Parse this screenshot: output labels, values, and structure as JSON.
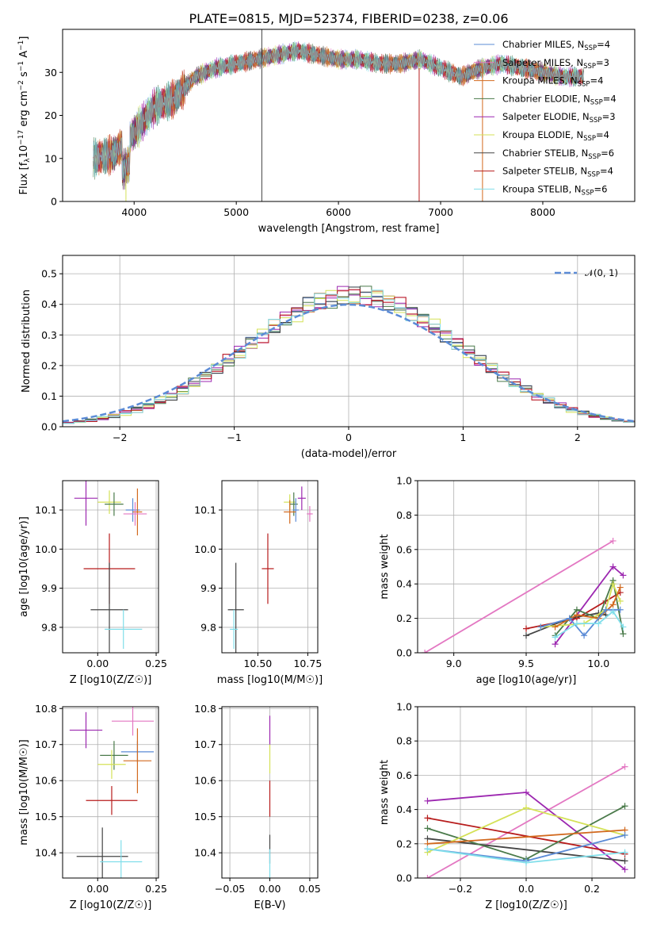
{
  "figure": {
    "title": "PLATE=0815, MJD=52374, FIBERID=0238, z=0.06"
  },
  "colors": {
    "chabrier_miles": "#1f77b4",
    "salpeter_miles": "#ff7f0e",
    "kroupa_miles": "#d2691e",
    "chabrier_elodie": "#2e7d32",
    "salpeter_elodie": "#9c27b0",
    "kroupa_elodie": "#d4e157",
    "chabrier_stelib": "#333333",
    "salpeter_stelib": "#b71c1c",
    "kroupa_stelib": "#80deea",
    "pink": "#e377c2",
    "blue_line": "#5b8bd6"
  },
  "chart_data": [
    {
      "id": "spectrum",
      "type": "line",
      "title": "PLATE=0815, MJD=52374, FIBERID=0238, z=0.06",
      "xlabel": "wavelength [Angstrom, rest frame]",
      "ylabel": "Flux [f_λ 10^-17 erg cm^-2 s^-1 A^-1]",
      "xlim": [
        3300,
        8900
      ],
      "ylim": [
        0,
        40
      ],
      "xticks": [
        4000,
        5000,
        6000,
        7000,
        8000
      ],
      "yticks": [
        0,
        10,
        20,
        30
      ],
      "grid": false,
      "legend_position": "top-right",
      "series": [
        {
          "name": "Chabrier MILES, N_SSP=4",
          "label_main": "Chabrier MILES, N",
          "label_sub": "SSP",
          "label_tail": "=4",
          "color": "#5b8bd6"
        },
        {
          "name": "Salpeter MILES, N_SSP=3",
          "label_main": "Salpeter MILES, N",
          "label_sub": "SSP",
          "label_tail": "=3",
          "color": "#e377c2"
        },
        {
          "name": "Kroupa MILES, N_SSP=4",
          "label_main": "Kroupa MILES, N",
          "label_sub": "SSP",
          "label_tail": "=4",
          "color": "#d2691e"
        },
        {
          "name": "Chabrier ELODIE, N_SSP=4",
          "label_main": "Chabrier ELODIE, N",
          "label_sub": "SSP",
          "label_tail": "=4",
          "color": "#4a7a4a"
        },
        {
          "name": "Salpeter ELODIE, N_SSP=3",
          "label_main": "Salpeter ELODIE, N",
          "label_sub": "SSP",
          "label_tail": "=3",
          "color": "#9c27b0"
        },
        {
          "name": "Kroupa ELODIE, N_SSP=4",
          "label_main": "Kroupa ELODIE, N",
          "label_sub": "SSP",
          "label_tail": "=4",
          "color": "#d4e157"
        },
        {
          "name": "Chabrier STELIB, N_SSP=6",
          "label_main": "Chabrier STELIB, N",
          "label_sub": "SSP",
          "label_tail": "=6",
          "color": "#444444"
        },
        {
          "name": "Salpeter STELIB, N_SSP=4",
          "label_main": "Salpeter STELIB, N",
          "label_sub": "SSP",
          "label_tail": "=4",
          "color": "#b71c1c"
        },
        {
          "name": "Kroupa STELIB, N_SSP=6",
          "label_main": "Kroupa STELIB, N",
          "label_sub": "SSP",
          "label_tail": "=6",
          "color": "#80deea"
        }
      ],
      "continuum": {
        "x": [
          3600,
          3800,
          4000,
          4200,
          4400,
          4600,
          4800,
          5000,
          5200,
          5400,
          5600,
          5800,
          6000,
          6200,
          6400,
          6600,
          6800,
          7000,
          7200,
          7400,
          7600,
          7800,
          8000,
          8200,
          8400
        ],
        "y": [
          10,
          11,
          16,
          22,
          24,
          29,
          31,
          32,
          33,
          34,
          35,
          34,
          33,
          33,
          32,
          32,
          33,
          31,
          29,
          31,
          32,
          31,
          30,
          29,
          29
        ]
      }
    },
    {
      "id": "residuals",
      "type": "line",
      "xlabel": "(data-model)/error",
      "ylabel": "Normed distribution",
      "xlim": [
        -2.5,
        2.5
      ],
      "ylim": [
        0,
        0.56
      ],
      "xticks": [
        -2,
        -1,
        0,
        1,
        2
      ],
      "yticks": [
        0.0,
        0.1,
        0.2,
        0.3,
        0.4,
        0.5
      ],
      "grid": true,
      "legend_position": "top-right",
      "legend_label": "𝒩(0, 1)",
      "reference_curve": {
        "name": "N(0,1)",
        "mean": 0,
        "sigma": 1
      }
    },
    {
      "id": "age_vs_Z",
      "type": "scatter",
      "xlabel": "Z [log10(Z/Z☉)]",
      "ylabel": "age  [log10(age/yr)]",
      "xlim": [
        -0.15,
        0.26
      ],
      "ylim": [
        9.735,
        10.175
      ],
      "xticks": [
        0.0,
        0.25
      ],
      "yticks": [
        9.8,
        9.9,
        10.0,
        10.1
      ],
      "grid": true,
      "points": [
        {
          "x": -0.05,
          "y": 10.13,
          "xerr": 0.05,
          "yerr": 0.07,
          "color": "#9c27b0"
        },
        {
          "x": 0.05,
          "y": 10.12,
          "xerr": 0.05,
          "yerr": 0.03,
          "color": "#d4e157"
        },
        {
          "x": 0.07,
          "y": 10.115,
          "xerr": 0.04,
          "yerr": 0.03,
          "color": "#4a7a4a"
        },
        {
          "x": 0.15,
          "y": 10.1,
          "xerr": 0.03,
          "yerr": 0.03,
          "color": "#5b8bd6"
        },
        {
          "x": 0.17,
          "y": 10.095,
          "xerr": 0.02,
          "yerr": 0.06,
          "color": "#d2691e"
        },
        {
          "x": 0.16,
          "y": 10.09,
          "xerr": 0.05,
          "yerr": 0.03,
          "color": "#e377c2"
        },
        {
          "x": 0.05,
          "y": 9.95,
          "xerr": 0.11,
          "yerr": 0.09,
          "color": "#b71c1c"
        },
        {
          "x": 0.05,
          "y": 9.845,
          "xerr": 0.08,
          "yerr": 0.12,
          "color": "#444444"
        },
        {
          "x": 0.11,
          "y": 9.795,
          "xerr": 0.08,
          "yerr": 0.05,
          "color": "#80deea"
        }
      ]
    },
    {
      "id": "age_vs_mass",
      "type": "scatter",
      "xlabel": "mass [log10(M/M☉)]",
      "ylabel": "",
      "xlim": [
        10.32,
        10.8
      ],
      "ylim": [
        9.735,
        10.175
      ],
      "xticks": [
        10.5,
        10.75
      ],
      "yticks": [
        9.8,
        9.9,
        10.0,
        10.1
      ],
      "grid": true,
      "points": [
        {
          "x": 10.72,
          "y": 10.13,
          "xerr": 0.02,
          "yerr": 0.03,
          "color": "#9c27b0"
        },
        {
          "x": 10.66,
          "y": 10.12,
          "xerr": 0.03,
          "yerr": 0.02,
          "color": "#d4e157"
        },
        {
          "x": 10.68,
          "y": 10.115,
          "xerr": 0.02,
          "yerr": 0.03,
          "color": "#4a7a4a"
        },
        {
          "x": 10.69,
          "y": 10.1,
          "xerr": 0.015,
          "yerr": 0.03,
          "color": "#5b8bd6"
        },
        {
          "x": 10.66,
          "y": 10.095,
          "xerr": 0.03,
          "yerr": 0.03,
          "color": "#d2691e"
        },
        {
          "x": 10.76,
          "y": 10.09,
          "xerr": 0.015,
          "yerr": 0.02,
          "color": "#e377c2"
        },
        {
          "x": 10.55,
          "y": 9.95,
          "xerr": 0.03,
          "yerr": 0.09,
          "color": "#b71c1c"
        },
        {
          "x": 10.39,
          "y": 9.845,
          "xerr": 0.04,
          "yerr": 0.12,
          "color": "#444444"
        },
        {
          "x": 10.38,
          "y": 9.795,
          "xerr": 0.02,
          "yerr": 0.05,
          "color": "#80deea"
        }
      ]
    },
    {
      "id": "weights_vs_age",
      "type": "line",
      "xlabel": "age  [log10(age/yr)]",
      "ylabel": "mass weight",
      "xlim": [
        8.75,
        10.25
      ],
      "ylim": [
        0,
        1.0
      ],
      "xticks": [
        9.0,
        9.5,
        10.0
      ],
      "yticks": [
        0.0,
        0.2,
        0.4,
        0.6,
        0.8,
        1.0
      ],
      "grid": true,
      "series": [
        {
          "color": "#e377c2",
          "x": [
            8.8,
            10.1
          ],
          "y": [
            0.0,
            0.65
          ]
        },
        {
          "color": "#9c27b0",
          "x": [
            9.7,
            10.1,
            10.17
          ],
          "y": [
            0.05,
            0.5,
            0.45
          ]
        },
        {
          "color": "#b71c1c",
          "x": [
            9.5,
            9.85,
            10.05,
            10.15
          ],
          "y": [
            0.14,
            0.2,
            0.3,
            0.35
          ]
        },
        {
          "color": "#444444",
          "x": [
            9.5,
            9.8,
            10.0,
            10.05
          ],
          "y": [
            0.1,
            0.2,
            0.23,
            0.22
          ]
        },
        {
          "color": "#4a7a4a",
          "x": [
            9.7,
            9.85,
            10.0,
            10.1,
            10.17
          ],
          "y": [
            0.1,
            0.25,
            0.2,
            0.42,
            0.11
          ]
        },
        {
          "color": "#d4e157",
          "x": [
            9.6,
            9.9,
            10.05,
            10.1,
            10.15
          ],
          "y": [
            0.15,
            0.17,
            0.25,
            0.4,
            0.3
          ]
        },
        {
          "color": "#d2691e",
          "x": [
            9.7,
            9.85,
            10.0,
            10.1,
            10.15
          ],
          "y": [
            0.15,
            0.22,
            0.2,
            0.28,
            0.38
          ]
        },
        {
          "color": "#5b8bd6",
          "x": [
            9.6,
            9.8,
            9.9,
            10.05,
            10.15
          ],
          "y": [
            0.15,
            0.2,
            0.1,
            0.25,
            0.25
          ]
        },
        {
          "color": "#80deea",
          "x": [
            9.7,
            9.85,
            10.0,
            10.1,
            10.17
          ],
          "y": [
            0.09,
            0.17,
            0.17,
            0.24,
            0.15
          ]
        }
      ]
    },
    {
      "id": "mass_vs_Z",
      "type": "scatter",
      "xlabel": "Z [log10(Z/Z☉)]",
      "ylabel": "mass [log10(M/M☉)]",
      "xlim": [
        -0.15,
        0.26
      ],
      "ylim": [
        10.33,
        10.805
      ],
      "xticks": [
        0.0,
        0.25
      ],
      "yticks": [
        10.4,
        10.5,
        10.6,
        10.7,
        10.8
      ],
      "grid": true,
      "points": [
        {
          "x": -0.05,
          "y": 10.74,
          "xerr": 0.07,
          "yerr": 0.05,
          "color": "#9c27b0"
        },
        {
          "x": 0.15,
          "y": 10.765,
          "xerr": 0.09,
          "yerr": 0.04,
          "color": "#e377c2"
        },
        {
          "x": 0.17,
          "y": 10.68,
          "xerr": 0.07,
          "yerr": 0.03,
          "color": "#5b8bd6"
        },
        {
          "x": 0.07,
          "y": 10.67,
          "xerr": 0.06,
          "yerr": 0.04,
          "color": "#4a7a4a"
        },
        {
          "x": 0.17,
          "y": 10.655,
          "xerr": 0.06,
          "yerr": 0.09,
          "color": "#d2691e"
        },
        {
          "x": 0.06,
          "y": 10.645,
          "xerr": 0.06,
          "yerr": 0.04,
          "color": "#d4e157"
        },
        {
          "x": 0.06,
          "y": 10.545,
          "xerr": 0.11,
          "yerr": 0.04,
          "color": "#b71c1c"
        },
        {
          "x": 0.02,
          "y": 10.39,
          "xerr": 0.11,
          "yerr": 0.08,
          "color": "#444444"
        },
        {
          "x": 0.1,
          "y": 10.375,
          "xerr": 0.09,
          "yerr": 0.06,
          "color": "#80deea"
        }
      ]
    },
    {
      "id": "mass_vs_ebv",
      "type": "scatter",
      "xlabel": "E(B-V)",
      "ylabel": "",
      "xlim": [
        -0.06,
        0.06
      ],
      "ylim": [
        10.33,
        10.805
      ],
      "xticks": [
        -0.05,
        0.0,
        0.05
      ],
      "xticklabels": [
        "−0.05",
        "0.00",
        "0.05"
      ],
      "yticks": [
        10.4,
        10.5,
        10.6,
        10.7,
        10.8
      ],
      "grid": true,
      "points": [
        {
          "x": 0.0,
          "y": 10.74,
          "yerr": 0.04,
          "color": "#9c27b0"
        },
        {
          "x": 0.0,
          "y": 10.66,
          "yerr": 0.04,
          "color": "#d4e157"
        },
        {
          "x": 0.0,
          "y": 10.55,
          "yerr": 0.05,
          "color": "#b71c1c"
        },
        {
          "x": 0.0,
          "y": 10.41,
          "yerr": 0.04,
          "color": "#444444"
        },
        {
          "x": 0.0,
          "y": 10.37,
          "yerr": 0.04,
          "color": "#80deea"
        }
      ]
    },
    {
      "id": "weights_vs_Z",
      "type": "line",
      "xlabel": "Z [log10(Z/Z☉)]",
      "ylabel": "mass weight",
      "xlim": [
        -0.33,
        0.33
      ],
      "ylim": [
        0,
        1.0
      ],
      "xticks": [
        -0.2,
        0.0,
        0.2
      ],
      "xticklabels": [
        "−0.2",
        "0.0",
        "0.2"
      ],
      "yticks": [
        0.0,
        0.2,
        0.4,
        0.6,
        0.8,
        1.0
      ],
      "grid": true,
      "series": [
        {
          "color": "#e377c2",
          "x": [
            -0.3,
            0.3
          ],
          "y": [
            0.0,
            0.65
          ]
        },
        {
          "color": "#9c27b0",
          "x": [
            -0.3,
            0.0,
            0.3
          ],
          "y": [
            0.45,
            0.5,
            0.05
          ]
        },
        {
          "color": "#b71c1c",
          "x": [
            -0.3,
            0.3
          ],
          "y": [
            0.35,
            0.14
          ]
        },
        {
          "color": "#444444",
          "x": [
            -0.3,
            0.3
          ],
          "y": [
            0.23,
            0.1
          ]
        },
        {
          "color": "#4a7a4a",
          "x": [
            -0.3,
            0.0,
            0.3
          ],
          "y": [
            0.29,
            0.11,
            0.42
          ]
        },
        {
          "color": "#d4e157",
          "x": [
            -0.3,
            0.0,
            0.3
          ],
          "y": [
            0.15,
            0.41,
            0.25
          ]
        },
        {
          "color": "#d2691e",
          "x": [
            -0.3,
            0.3
          ],
          "y": [
            0.2,
            0.28
          ]
        },
        {
          "color": "#5b8bd6",
          "x": [
            -0.3,
            0.0,
            0.3
          ],
          "y": [
            0.17,
            0.1,
            0.25
          ]
        },
        {
          "color": "#80deea",
          "x": [
            -0.3,
            0.0,
            0.3
          ],
          "y": [
            0.17,
            0.09,
            0.15
          ]
        }
      ]
    }
  ]
}
